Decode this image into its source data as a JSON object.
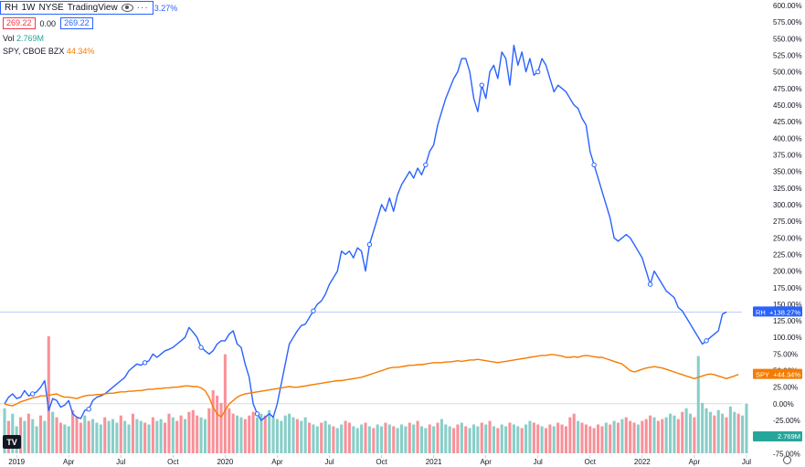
{
  "header": {
    "symbol": "RH",
    "interval": "1W",
    "exchange": "NYSE",
    "source": "TradingView",
    "change_partial": "3.27%",
    "price_left": "269.22",
    "change": "0.00",
    "price_right": "269.22",
    "vol_label": "Vol",
    "vol_value": "2.769M",
    "compare_label": "SPY, CBOE BZX",
    "compare_value": "44.34%",
    "icons": [
      "eye-icon",
      "more-icon",
      "tradingview-logo-icon",
      "settings-icon"
    ]
  },
  "colors": {
    "rh": "#2962ff",
    "spy": "#f57c00",
    "vol_up": "#26a69a",
    "vol_down": "#f23645"
  },
  "chart_data": {
    "type": "line",
    "y_axis_unit": "percent change",
    "ylim": [
      -80,
      600
    ],
    "y_ticks": [
      600,
      575,
      550,
      525,
      500,
      475,
      450,
      425,
      400,
      375,
      350,
      325,
      300,
      275,
      250,
      225,
      200,
      175,
      150,
      125,
      100,
      75,
      50,
      25,
      0,
      -25,
      -50,
      -75
    ],
    "y_tick_labels": [
      "600.00%",
      "575.00%",
      "550.00%",
      "525.00%",
      "500.00%",
      "475.00%",
      "450.00%",
      "425.00%",
      "400.00%",
      "375.00%",
      "350.00%",
      "325.00%",
      "300.00%",
      "275.00%",
      "250.00%",
      "225.00%",
      "200.00%",
      "175.00%",
      "150.00%",
      "125.00%",
      "100.00%",
      "75.00%",
      "50.00%",
      "25.00%",
      "0.00%",
      "-25.00%",
      "-50.00%",
      "-75.00%"
    ],
    "x_tick_labels": [
      "2019",
      "Apr",
      "Jul",
      "Oct",
      "2020",
      "Apr",
      "Jul",
      "Oct",
      "2021",
      "Apr",
      "Jul",
      "Oct",
      "2022",
      "Apr",
      "Jul"
    ],
    "x_tick_index": [
      3,
      16,
      29,
      42,
      55,
      68,
      81,
      94,
      107,
      120,
      133,
      146,
      159,
      172,
      185
    ],
    "series": [
      {
        "name": "RH",
        "label": "+138.27%",
        "values": [
          0,
          10,
          15,
          8,
          10,
          20,
          12,
          15,
          18,
          25,
          35,
          -10,
          8,
          5,
          -5,
          -2,
          5,
          -15,
          -20,
          -22,
          -10,
          -8,
          5,
          10,
          12,
          15,
          20,
          25,
          30,
          35,
          40,
          50,
          55,
          60,
          58,
          62,
          65,
          75,
          70,
          75,
          80,
          82,
          85,
          90,
          95,
          100,
          115,
          108,
          100,
          85,
          80,
          75,
          80,
          90,
          95,
          95,
          105,
          110,
          90,
          85,
          60,
          40,
          0,
          -15,
          -25,
          -20,
          -15,
          -20,
          0,
          30,
          60,
          90,
          100,
          110,
          118,
          120,
          130,
          140,
          150,
          155,
          165,
          180,
          190,
          200,
          230,
          225,
          230,
          220,
          235,
          230,
          200,
          240,
          260,
          280,
          300,
          290,
          310,
          290,
          315,
          330,
          340,
          350,
          340,
          355,
          345,
          360,
          380,
          390,
          420,
          440,
          460,
          475,
          490,
          500,
          520,
          520,
          500,
          460,
          440,
          480,
          460,
          500,
          510,
          490,
          530,
          520,
          480,
          540,
          510,
          530,
          500,
          520,
          495,
          500,
          520,
          510,
          490,
          470,
          480,
          475,
          470,
          460,
          450,
          445,
          430,
          420,
          380,
          360,
          340,
          320,
          300,
          280,
          250,
          245,
          250,
          255,
          250,
          240,
          230,
          220,
          200,
          180,
          200,
          190,
          180,
          170,
          165,
          160,
          145,
          140,
          130,
          120,
          110,
          100,
          90,
          95,
          100,
          105,
          110,
          135,
          138.27
        ]
      },
      {
        "name": "SPY",
        "label": "+44.34%",
        "values": [
          0,
          -2,
          -3,
          0,
          3,
          5,
          7,
          9,
          10,
          12,
          12,
          13,
          14,
          15,
          12,
          10,
          10,
          9,
          8,
          10,
          12,
          13,
          13,
          14,
          14,
          15,
          16,
          16,
          17,
          18,
          18,
          19,
          19,
          20,
          20,
          21,
          22,
          22,
          23,
          23,
          24,
          24,
          25,
          25,
          26,
          27,
          27,
          26,
          26,
          24,
          20,
          10,
          -5,
          -15,
          -20,
          -10,
          0,
          5,
          10,
          13,
          15,
          16,
          17,
          18,
          19,
          20,
          21,
          22,
          23,
          24,
          25,
          26,
          25,
          25,
          26,
          27,
          28,
          29,
          30,
          31,
          32,
          33,
          34,
          35,
          35,
          36,
          37,
          38,
          39,
          40,
          42,
          44,
          46,
          48,
          50,
          52,
          54,
          55,
          55,
          56,
          57,
          58,
          58,
          59,
          59,
          60,
          61,
          62,
          62,
          62,
          63,
          63,
          64,
          65,
          64,
          65,
          66,
          66,
          67,
          66,
          65,
          64,
          63,
          62,
          63,
          64,
          65,
          66,
          67,
          68,
          69,
          70,
          71,
          72,
          73,
          73,
          74,
          74,
          73,
          72,
          70,
          70,
          71,
          70,
          72,
          73,
          72,
          71,
          70,
          70,
          68,
          66,
          64,
          62,
          60,
          55,
          50,
          48,
          50,
          52,
          54,
          55,
          56,
          55,
          54,
          52,
          50,
          48,
          46,
          44,
          42,
          40,
          38,
          40,
          42,
          44,
          45,
          44,
          42,
          40,
          38,
          40,
          42,
          44.34
        ]
      }
    ],
    "volume": {
      "name": "Vol",
      "label": "2.769M",
      "unit": "M",
      "values": [
        2.5,
        1.8,
        2.2,
        1.5,
        2.0,
        1.8,
        2.2,
        1.9,
        1.5,
        2.1,
        1.8,
        6.5,
        2.3,
        2.0,
        1.7,
        1.6,
        1.5,
        2.4,
        2.0,
        1.7,
        2.1,
        1.8,
        1.9,
        1.7,
        1.6,
        2.0,
        1.8,
        1.9,
        1.7,
        2.1,
        1.8,
        1.6,
        2.2,
        1.9,
        1.8,
        1.7,
        1.6,
        2.0,
        1.8,
        1.9,
        1.7,
        2.2,
        2.0,
        1.8,
        2.1,
        1.9,
        2.3,
        2.4,
        2.1,
        2.0,
        1.9,
        2.5,
        3.5,
        3.2,
        2.8,
        5.5,
        2.5,
        2.2,
        2.1,
        2.0,
        1.9,
        2.1,
        2.3,
        2.0,
        2.2,
        2.1,
        2.4,
        2.0,
        1.9,
        1.8,
        2.1,
        2.2,
        2.0,
        1.9,
        1.8,
        2.0,
        1.7,
        1.6,
        1.5,
        1.7,
        1.8,
        1.6,
        1.5,
        1.4,
        1.6,
        1.8,
        1.7,
        1.5,
        1.4,
        1.6,
        1.7,
        1.5,
        1.4,
        1.6,
        1.5,
        1.7,
        1.6,
        1.5,
        1.4,
        1.6,
        1.5,
        1.7,
        1.6,
        1.8,
        1.5,
        1.4,
        1.6,
        1.5,
        1.7,
        1.9,
        1.6,
        1.5,
        1.4,
        1.6,
        1.7,
        1.5,
        1.4,
        1.6,
        1.5,
        1.7,
        1.6,
        1.8,
        1.5,
        1.4,
        1.6,
        1.5,
        1.7,
        1.6,
        1.5,
        1.4,
        1.6,
        1.8,
        1.7,
        1.6,
        1.5,
        1.4,
        1.6,
        1.5,
        1.7,
        1.6,
        1.5,
        2.0,
        2.2,
        1.8,
        1.7,
        1.6,
        1.5,
        1.4,
        1.6,
        1.5,
        1.7,
        1.6,
        1.8,
        1.7,
        1.9,
        2.0,
        1.8,
        1.7,
        1.6,
        1.8,
        1.9,
        2.1,
        2.0,
        1.8,
        1.9,
        2.0,
        2.2,
        2.1,
        1.9,
        2.3,
        2.5,
        2.2,
        2.0,
        5.4,
        2.8,
        2.5,
        2.3,
        2.1,
        2.4,
        2.2,
        2.0,
        2.6,
        2.3,
        2.2,
        2.1,
        2.769
      ],
      "down_flags": [
        0,
        1,
        0,
        0,
        1,
        0,
        1,
        0,
        0,
        1,
        0,
        1,
        0,
        1,
        1,
        0,
        0,
        1,
        1,
        1,
        0,
        1,
        0,
        0,
        0,
        1,
        0,
        0,
        0,
        1,
        0,
        0,
        1,
        0,
        0,
        1,
        0,
        1,
        0,
        0,
        1,
        1,
        0,
        1,
        1,
        0,
        1,
        1,
        1,
        0,
        0,
        1,
        1,
        1,
        1,
        1,
        1,
        1,
        0,
        0,
        1,
        1,
        1,
        0,
        0,
        1,
        0,
        0,
        0,
        0,
        0,
        0,
        0,
        1,
        0,
        0,
        1,
        0,
        0,
        1,
        0,
        0,
        1,
        0,
        0,
        1,
        1,
        0,
        0,
        0,
        1,
        0,
        1,
        0,
        0,
        1,
        0,
        1,
        0,
        0,
        0,
        1,
        0,
        1,
        0,
        0,
        1,
        0,
        1,
        0,
        0,
        0,
        1,
        1,
        0,
        1,
        0,
        0,
        0,
        1,
        0,
        1,
        0,
        1,
        0,
        0,
        1,
        0,
        0,
        1,
        0,
        0,
        1,
        1,
        0,
        1,
        1,
        0,
        1,
        1,
        1,
        1,
        1,
        0,
        1,
        1,
        1,
        1,
        1,
        1,
        0,
        1,
        0,
        1,
        0,
        1,
        1,
        1,
        0,
        1,
        1,
        1,
        0,
        1,
        1,
        0,
        0,
        0,
        1,
        1,
        0,
        0,
        1,
        0,
        0,
        0,
        0,
        1,
        0,
        0,
        1,
        0,
        0,
        1,
        0,
        0,
        0,
        0,
        0,
        0,
        0,
        0,
        0
      ]
    },
    "grid": false,
    "legend": "top-left",
    "crosshair_value": "+138.27%"
  }
}
